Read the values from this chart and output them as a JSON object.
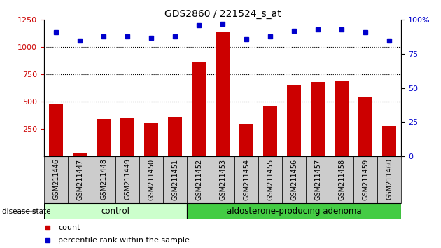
{
  "title": "GDS2860 / 221524_s_at",
  "samples": [
    "GSM211446",
    "GSM211447",
    "GSM211448",
    "GSM211449",
    "GSM211450",
    "GSM211451",
    "GSM211452",
    "GSM211453",
    "GSM211454",
    "GSM211455",
    "GSM211456",
    "GSM211457",
    "GSM211458",
    "GSM211459",
    "GSM211460"
  ],
  "counts": [
    480,
    30,
    340,
    350,
    305,
    360,
    860,
    1140,
    295,
    455,
    655,
    680,
    690,
    540,
    275
  ],
  "percentiles": [
    91,
    85,
    88,
    88,
    87,
    88,
    96,
    97,
    86,
    88,
    92,
    93,
    93,
    91,
    85
  ],
  "control_count": 6,
  "adenoma_count": 9,
  "bar_color": "#cc0000",
  "dot_color": "#0000cc",
  "control_bg": "#ccffcc",
  "adenoma_bg": "#44cc44",
  "tick_bg": "#cccccc",
  "ylim_left": [
    0,
    1250
  ],
  "ylim_right": [
    0,
    100
  ],
  "yticks_left": [
    250,
    500,
    750,
    1000,
    1250
  ],
  "yticks_right": [
    0,
    25,
    50,
    75,
    100
  ],
  "grid_values": [
    500,
    750,
    1000
  ],
  "legend_count_label": "count",
  "legend_percentile_label": "percentile rank within the sample",
  "disease_state_label": "disease state",
  "control_label": "control",
  "adenoma_label": "aldosterone-producing adenoma"
}
